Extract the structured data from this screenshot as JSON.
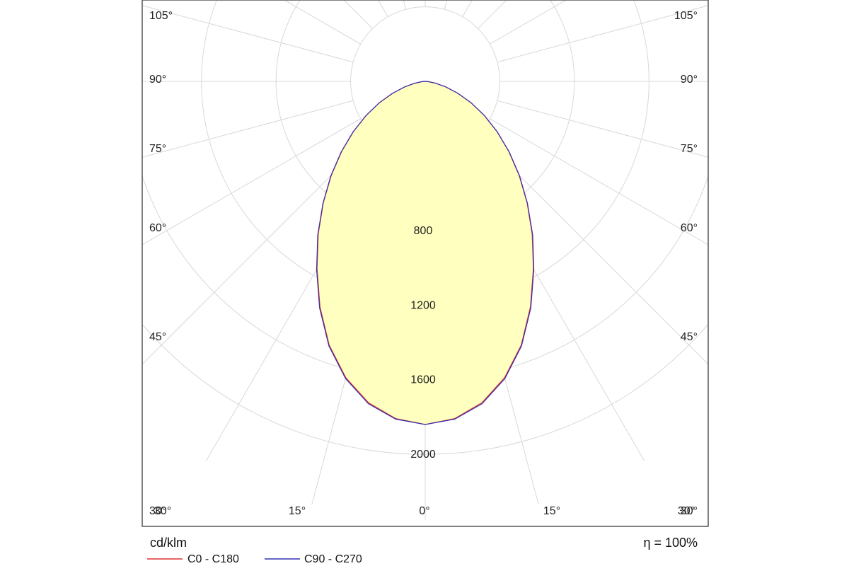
{
  "chart_data": {
    "type": "polar",
    "unit_label": "cd/klm",
    "efficiency_label": "η = 100%",
    "rlim": [
      0,
      2300
    ],
    "radial_ticks": [
      {
        "value": 400,
        "label": ""
      },
      {
        "value": 800,
        "label": "800"
      },
      {
        "value": 1200,
        "label": "1200"
      },
      {
        "value": 1600,
        "label": "1600"
      },
      {
        "value": 2000,
        "label": "2000"
      }
    ],
    "angle_ticks_deg": [
      0,
      15,
      30,
      45,
      60,
      75,
      90,
      105,
      120,
      135,
      150,
      165,
      180
    ],
    "angle_labels": {
      "left": [
        "105°",
        "90°",
        "75°",
        "60°",
        "45°",
        "30°"
      ],
      "right": [
        "105°",
        "90°",
        "75°",
        "60°",
        "45°",
        "30°"
      ],
      "bottom": [
        "30°",
        "15°",
        "0°",
        "15°",
        "30°"
      ]
    },
    "series": [
      {
        "name": "C0 - C180",
        "color": "#e03030",
        "angles_deg": [
          0,
          5,
          10,
          15,
          20,
          25,
          30,
          35,
          40,
          45,
          50,
          55,
          60,
          65,
          70,
          75,
          80,
          85,
          90
        ],
        "values": [
          1840,
          1815,
          1750,
          1645,
          1505,
          1335,
          1160,
          1000,
          850,
          712,
          585,
          470,
          365,
          270,
          185,
          112,
          55,
          16,
          0
        ]
      },
      {
        "name": "C90 - C270",
        "color": "#3030b0",
        "angles_deg": [
          0,
          5,
          10,
          15,
          20,
          25,
          30,
          35,
          40,
          45,
          50,
          55,
          60,
          65,
          70,
          75,
          80,
          85,
          90
        ],
        "values": [
          1840,
          1818,
          1755,
          1650,
          1510,
          1340,
          1165,
          1005,
          853,
          715,
          588,
          472,
          367,
          272,
          187,
          113,
          56,
          17,
          0
        ]
      }
    ],
    "fill_color": "#ffffc0"
  }
}
